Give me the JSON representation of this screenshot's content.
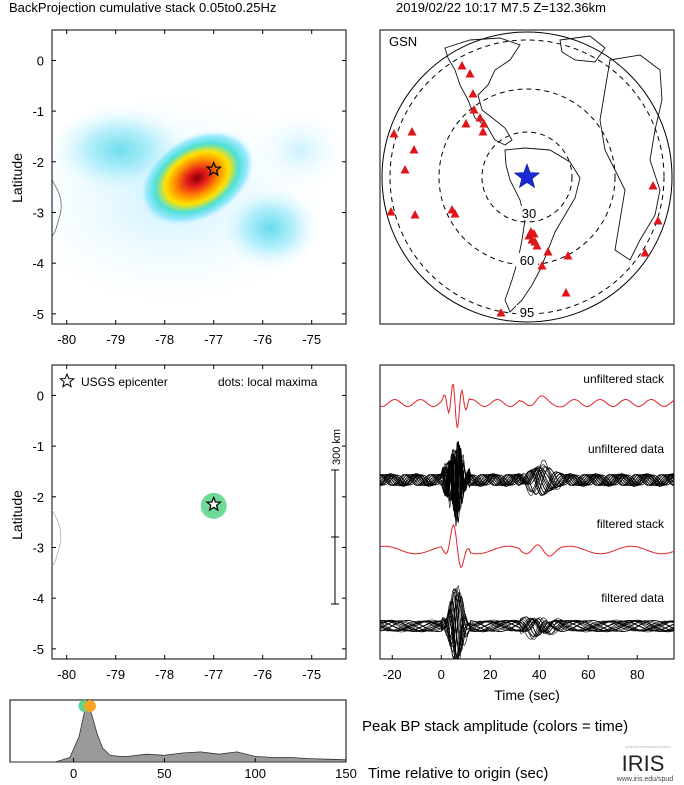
{
  "header": {
    "title": "BackProjection cumulative stack 0.05to0.25Hz",
    "event": "2019/02/22 10:17  M7.5  Z=132.36km"
  },
  "chart_data": [
    {
      "type": "heatmap",
      "panel": "cumulative-stack",
      "xlabel": "",
      "ylabel": "Latitude",
      "xlim": [
        -80.3,
        -74.3
      ],
      "ylim": [
        -5.2,
        0.6
      ],
      "x_ticks": [
        "-80",
        "-79",
        "-78",
        "-77",
        "-76",
        "-75"
      ],
      "y_ticks": [
        "0",
        "-1",
        "-2",
        "-3",
        "-4",
        "-5"
      ],
      "epicenter": {
        "lon": -77.0,
        "lat": -2.15
      },
      "peak": {
        "lon": -77.1,
        "lat": -2.2
      }
    },
    {
      "type": "map",
      "panel": "station-map",
      "network_label": "GSN",
      "distance_labels": [
        "30",
        "60",
        "95"
      ],
      "distance_rings_deg": [
        30,
        60,
        95
      ],
      "station_count": 30
    },
    {
      "type": "scatter",
      "panel": "local-maxima",
      "xlabel": "",
      "ylabel": "Latitude",
      "xlim": [
        -80.3,
        -74.3
      ],
      "ylim": [
        -5.2,
        0.6
      ],
      "x_ticks": [
        "-80",
        "-79",
        "-78",
        "-77",
        "-76",
        "-75"
      ],
      "y_ticks": [
        "0",
        "-1",
        "-2",
        "-3",
        "-4",
        "-5"
      ],
      "legend_epicenter": "USGS epicenter",
      "legend_dots": "dots: local maxima",
      "scale_label": "300 km",
      "epicenter": {
        "lon": -77.0,
        "lat": -2.15
      },
      "maxima": [
        {
          "lon": -77.0,
          "lat": -2.18,
          "color": "#5fd68f"
        }
      ]
    },
    {
      "type": "line",
      "panel": "seismograms",
      "xlabel": "Time (sec)",
      "xlim": [
        -25,
        95
      ],
      "x_ticks": [
        "-20",
        "0",
        "20",
        "40",
        "60",
        "80"
      ],
      "traces": [
        {
          "name": "unfiltered stack",
          "color": "#e0242a"
        },
        {
          "name": "unfiltered data",
          "color": "#000000"
        },
        {
          "name": "filtered stack",
          "color": "#e0242a"
        },
        {
          "name": "filtered data",
          "color": "#000000"
        }
      ]
    },
    {
      "type": "area",
      "panel": "peak-amplitude",
      "title": "Peak BP stack amplitude (colors = time)",
      "xlabel": "Time relative to origin (sec)",
      "xlim": [
        -35,
        150
      ],
      "x_ticks": [
        "0",
        "50",
        "100",
        "150"
      ],
      "x": [
        -35,
        -10,
        -2,
        3,
        6,
        8,
        10,
        13,
        16,
        20,
        25,
        30,
        40,
        50,
        60,
        70,
        80,
        90,
        100,
        110,
        120,
        130,
        140,
        150
      ],
      "values": [
        0.0,
        0.0,
        0.08,
        0.45,
        0.9,
        1.0,
        0.85,
        0.5,
        0.25,
        0.12,
        0.1,
        0.1,
        0.14,
        0.12,
        0.16,
        0.18,
        0.14,
        0.18,
        0.1,
        0.08,
        0.08,
        0.06,
        0.05,
        0.04
      ],
      "markers": [
        {
          "t": 6,
          "color": "#5fd68f"
        },
        {
          "t": 9,
          "color": "#f5a623"
        }
      ]
    }
  ],
  "logo": {
    "name": "IRIS",
    "url_text": "www.iris.edu/spud"
  }
}
